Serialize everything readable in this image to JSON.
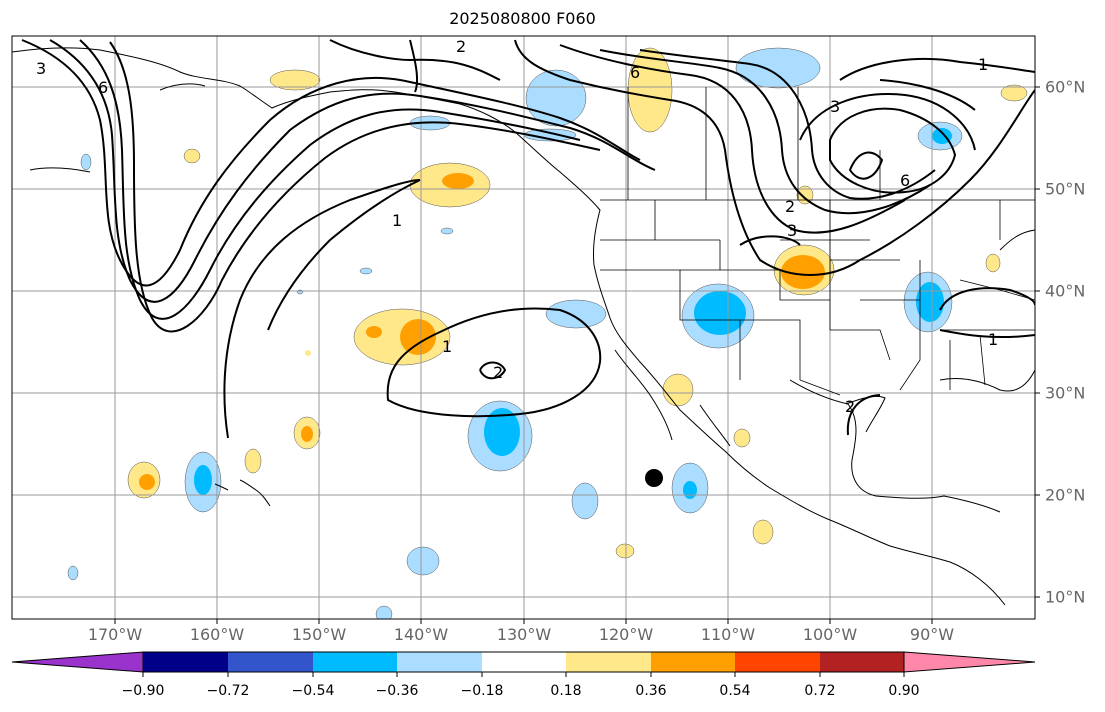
{
  "title": "2025080800 F060",
  "lon_labels": [
    "170°W",
    "160°W",
    "150°W",
    "140°W",
    "130°W",
    "120°W",
    "110°W",
    "100°W",
    "90°W"
  ],
  "lat_labels": [
    "60°N",
    "50°N",
    "40°N",
    "30°N",
    "20°N",
    "10°N"
  ],
  "colorbar": {
    "ticks": [
      "−0.90",
      "−0.72",
      "−0.54",
      "−0.36",
      "−0.18",
      "0.18",
      "0.36",
      "0.54",
      "0.72",
      "0.90"
    ],
    "colors": [
      "#9933cc",
      "#000088",
      "#3355cc",
      "#00bbff",
      "#aaddff",
      "#ffffff",
      "#ffe88a",
      "#ffa000",
      "#ff4400",
      "#b22222",
      "#ff88aa"
    ]
  },
  "contour_labels": [
    "3",
    "6",
    "2",
    "1",
    "1",
    "2",
    "2",
    "6",
    "3",
    "1",
    "6",
    "1",
    "2",
    "3"
  ],
  "marker": "storm-center-dot"
}
